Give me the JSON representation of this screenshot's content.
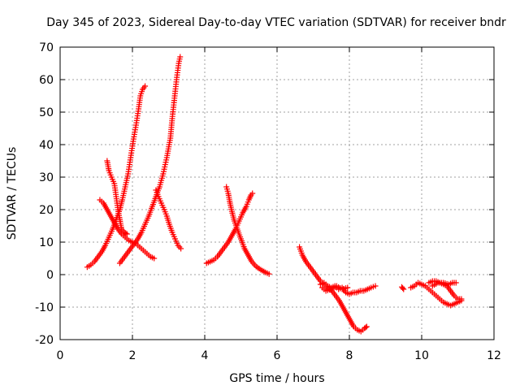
{
  "chart_data": {
    "type": "scatter",
    "title": "Day 345 of 2023, Sidereal Day-to-day VTEC variation (SDTVAR) for receiver bndr",
    "xlabel": "GPS time / hours",
    "ylabel": "SDTVAR / TECUs",
    "xlim": [
      0,
      12
    ],
    "ylim": [
      -20,
      70
    ],
    "xticks": [
      0,
      2,
      4,
      6,
      8,
      10,
      12
    ],
    "yticks": [
      -20,
      -10,
      0,
      10,
      20,
      30,
      40,
      50,
      60,
      70
    ],
    "grid": true,
    "marker": "plus",
    "color": "#ff0000",
    "series": [
      {
        "points": [
          [
            0.75,
            2.3
          ],
          [
            0.85,
            3
          ],
          [
            0.95,
            4
          ],
          [
            1.05,
            5.5
          ],
          [
            1.15,
            7
          ],
          [
            1.25,
            9
          ],
          [
            1.35,
            11.5
          ],
          [
            1.45,
            14
          ],
          [
            1.55,
            17
          ],
          [
            1.65,
            20
          ],
          [
            1.72,
            23
          ],
          [
            1.8,
            27
          ],
          [
            1.88,
            31
          ],
          [
            1.95,
            36
          ],
          [
            2.02,
            41
          ],
          [
            2.1,
            46
          ],
          [
            2.17,
            51
          ],
          [
            2.22,
            55
          ],
          [
            2.28,
            57
          ],
          [
            2.35,
            58
          ]
        ]
      },
      {
        "points": [
          [
            1.3,
            35
          ],
          [
            1.35,
            32
          ],
          [
            1.42,
            30
          ],
          [
            1.5,
            28
          ],
          [
            1.55,
            24
          ],
          [
            1.6,
            20
          ],
          [
            1.65,
            17
          ],
          [
            1.7,
            14
          ],
          [
            1.78,
            13
          ],
          [
            1.85,
            12.5
          ]
        ]
      },
      {
        "points": [
          [
            1.1,
            23
          ],
          [
            1.2,
            22
          ],
          [
            1.3,
            20
          ],
          [
            1.4,
            18
          ],
          [
            1.5,
            16
          ],
          [
            1.6,
            14
          ],
          [
            1.7,
            12.5
          ],
          [
            1.8,
            11.5
          ],
          [
            1.9,
            10.5
          ],
          [
            2.0,
            10
          ],
          [
            2.1,
            9.5
          ],
          [
            2.2,
            8.5
          ],
          [
            2.3,
            7.5
          ],
          [
            2.4,
            6.5
          ],
          [
            2.5,
            5.5
          ],
          [
            2.6,
            5
          ]
        ]
      },
      {
        "points": [
          [
            1.65,
            3.5
          ],
          [
            1.75,
            5
          ],
          [
            1.85,
            6.5
          ],
          [
            1.95,
            8
          ],
          [
            2.05,
            9.5
          ],
          [
            2.15,
            11
          ],
          [
            2.25,
            13
          ],
          [
            2.35,
            15.5
          ],
          [
            2.45,
            18
          ],
          [
            2.55,
            21
          ],
          [
            2.65,
            24
          ],
          [
            2.75,
            27
          ],
          [
            2.85,
            31
          ],
          [
            2.95,
            36
          ],
          [
            3.05,
            42
          ],
          [
            3.1,
            48
          ],
          [
            3.17,
            55
          ],
          [
            3.22,
            60
          ],
          [
            3.28,
            65
          ],
          [
            3.32,
            67
          ]
        ]
      },
      {
        "points": [
          [
            2.65,
            26
          ],
          [
            2.72,
            24
          ],
          [
            2.8,
            22
          ],
          [
            2.88,
            20
          ],
          [
            2.95,
            18
          ],
          [
            3.02,
            15.5
          ],
          [
            3.1,
            13
          ],
          [
            3.18,
            11
          ],
          [
            3.26,
            9
          ],
          [
            3.34,
            8
          ]
        ]
      },
      {
        "points": [
          [
            4.05,
            3.5
          ],
          [
            4.15,
            4
          ],
          [
            4.25,
            4.5
          ],
          [
            4.35,
            5.5
          ],
          [
            4.45,
            7
          ],
          [
            4.55,
            8.5
          ],
          [
            4.65,
            10
          ],
          [
            4.75,
            12
          ],
          [
            4.85,
            14
          ],
          [
            4.95,
            16.5
          ],
          [
            5.05,
            19
          ],
          [
            5.15,
            21
          ],
          [
            5.22,
            23
          ],
          [
            5.28,
            24.5
          ],
          [
            5.32,
            25
          ]
        ]
      },
      {
        "points": [
          [
            4.6,
            27
          ],
          [
            4.65,
            25
          ],
          [
            4.7,
            22
          ],
          [
            4.75,
            19.5
          ],
          [
            4.82,
            16.5
          ],
          [
            4.9,
            14
          ],
          [
            5.0,
            11
          ],
          [
            5.1,
            8
          ],
          [
            5.2,
            6
          ],
          [
            5.3,
            4
          ],
          [
            5.42,
            2.5
          ],
          [
            5.55,
            1.5
          ],
          [
            5.68,
            0.7
          ],
          [
            5.78,
            0.2
          ]
        ]
      },
      {
        "points": [
          [
            6.62,
            8.5
          ],
          [
            6.7,
            6
          ],
          [
            6.8,
            4
          ],
          [
            6.9,
            2.5
          ],
          [
            7.0,
            1
          ],
          [
            7.1,
            -0.5
          ],
          [
            7.2,
            -2
          ],
          [
            7.3,
            -3
          ],
          [
            7.4,
            -4
          ],
          [
            7.52,
            -5
          ],
          [
            7.62,
            -6.5
          ],
          [
            7.72,
            -8
          ],
          [
            7.82,
            -10
          ],
          [
            7.92,
            -12
          ],
          [
            8.02,
            -14
          ],
          [
            8.12,
            -16
          ],
          [
            8.22,
            -17
          ],
          [
            8.32,
            -17.5
          ],
          [
            8.42,
            -16.5
          ],
          [
            8.48,
            -16
          ]
        ]
      },
      {
        "points": [
          [
            7.2,
            -3
          ],
          [
            7.3,
            -2.5
          ],
          [
            7.4,
            -3.5
          ],
          [
            7.5,
            -4
          ],
          [
            7.6,
            -3.5
          ],
          [
            7.7,
            -4.5
          ],
          [
            7.8,
            -4
          ],
          [
            7.9,
            -5.5
          ],
          [
            8.0,
            -6
          ],
          [
            8.1,
            -5.5
          ],
          [
            8.2,
            -5.5
          ],
          [
            8.3,
            -5
          ],
          [
            8.4,
            -5
          ],
          [
            8.5,
            -4.5
          ],
          [
            8.6,
            -4
          ],
          [
            8.72,
            -3.5
          ]
        ]
      },
      {
        "points": [
          [
            7.25,
            -4
          ],
          [
            7.35,
            -5
          ],
          [
            7.5,
            -4.5
          ],
          [
            7.65,
            -3.5
          ],
          [
            7.8,
            -4.5
          ],
          [
            7.95,
            -4
          ]
        ]
      },
      {
        "points": [
          [
            9.45,
            -3.8
          ],
          [
            9.5,
            -4.5
          ]
        ]
      },
      {
        "points": [
          [
            9.7,
            -4
          ],
          [
            9.8,
            -3.5
          ],
          [
            9.9,
            -2.5
          ],
          [
            10.0,
            -3
          ],
          [
            10.1,
            -3.5
          ],
          [
            10.2,
            -4.5
          ],
          [
            10.3,
            -5.5
          ],
          [
            10.4,
            -6.5
          ],
          [
            10.5,
            -7.5
          ],
          [
            10.6,
            -8.5
          ],
          [
            10.7,
            -9
          ],
          [
            10.8,
            -9.5
          ],
          [
            10.9,
            -9
          ],
          [
            11.0,
            -8.5
          ],
          [
            11.1,
            -8
          ]
        ]
      },
      {
        "points": [
          [
            10.2,
            -2.5
          ],
          [
            10.3,
            -2
          ],
          [
            10.4,
            -2
          ],
          [
            10.5,
            -2.5
          ],
          [
            10.6,
            -3
          ],
          [
            10.7,
            -3.5
          ],
          [
            10.8,
            -5
          ],
          [
            10.9,
            -6.5
          ],
          [
            11.0,
            -7.5
          ],
          [
            11.1,
            -7.5
          ]
        ]
      },
      {
        "points": [
          [
            10.3,
            -3.5
          ],
          [
            10.45,
            -2.5
          ],
          [
            10.6,
            -2.5
          ],
          [
            10.75,
            -3
          ],
          [
            10.85,
            -2.5
          ],
          [
            10.95,
            -2.5
          ]
        ]
      }
    ]
  }
}
